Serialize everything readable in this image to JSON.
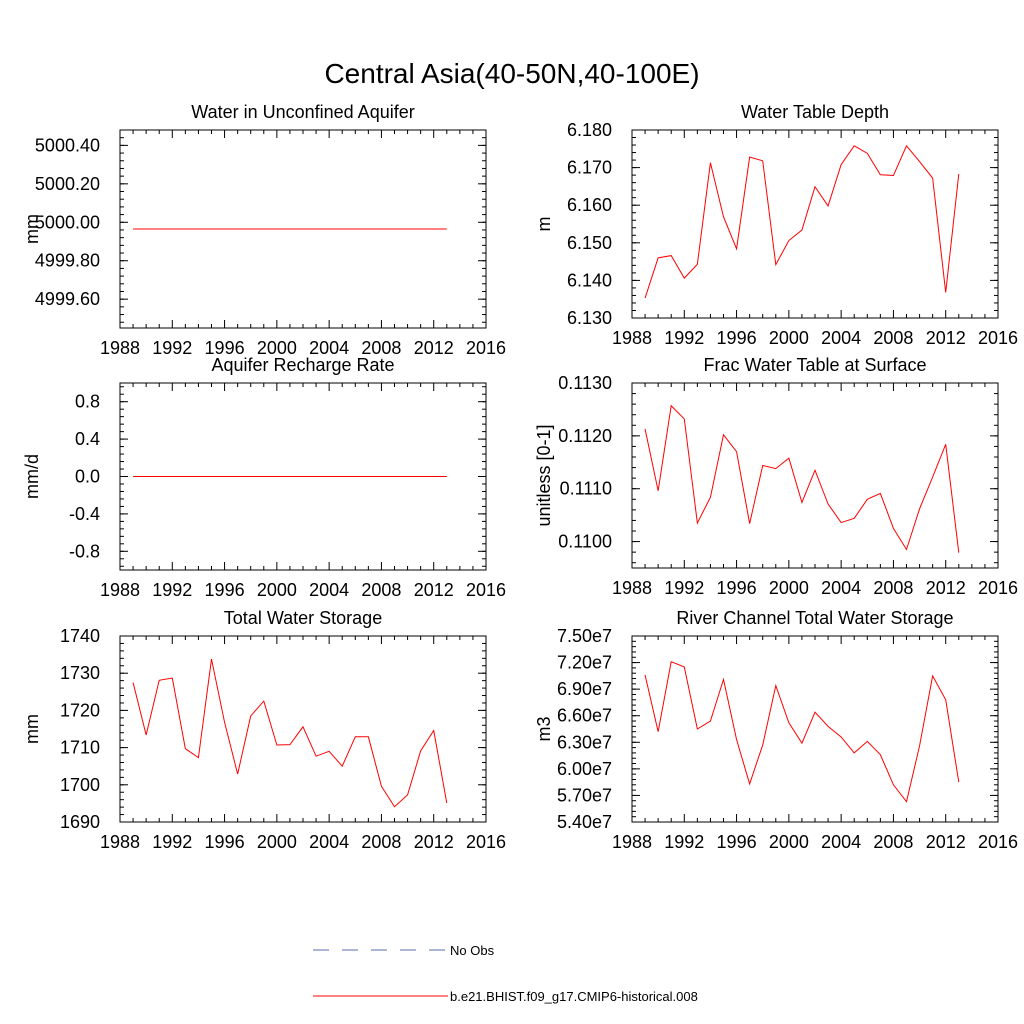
{
  "figure_title": "Central Asia(40-50N,40-100E)",
  "legend": {
    "entries": [
      {
        "label": "No Obs",
        "color": "#5a6fb0",
        "style": "dashed"
      },
      {
        "label": "b.e21.BHIST.f09_g17.CMIP6-historical.008",
        "color": "#ff0000",
        "style": "solid"
      }
    ]
  },
  "chart_data": [
    {
      "type": "line",
      "title": "Water in Unconfined Aquifer",
      "ylabel": "mm",
      "xlim": [
        1988,
        2016
      ],
      "ylim": [
        4999.45,
        5000.48
      ],
      "xticks": [
        1988,
        1992,
        1996,
        2000,
        2004,
        2008,
        2012,
        2016
      ],
      "yticks": [
        4999.6,
        4999.8,
        5000.0,
        5000.2,
        5000.4
      ],
      "ytick_labels": [
        "4999.60",
        "4999.80",
        "5000.00",
        "5000.20",
        "5000.40"
      ],
      "series": [
        {
          "color": "#ff0000",
          "x": [
            1989,
            1990,
            1991,
            1992,
            1993,
            1994,
            1995,
            1996,
            1997,
            1998,
            1999,
            2000,
            2001,
            2002,
            2003,
            2004,
            2005,
            2006,
            2007,
            2008,
            2009,
            2010,
            2011,
            2012,
            2013
          ],
          "y": [
            4999.965,
            4999.965,
            4999.965,
            4999.965,
            4999.965,
            4999.965,
            4999.965,
            4999.965,
            4999.965,
            4999.965,
            4999.965,
            4999.965,
            4999.965,
            4999.965,
            4999.965,
            4999.965,
            4999.965,
            4999.965,
            4999.965,
            4999.965,
            4999.965,
            4999.965,
            4999.965,
            4999.965,
            4999.965
          ]
        }
      ]
    },
    {
      "type": "line",
      "title": "Water Table Depth",
      "ylabel": "m",
      "xlim": [
        1988,
        2016
      ],
      "ylim": [
        6.13,
        6.18
      ],
      "xticks": [
        1988,
        1992,
        1996,
        2000,
        2004,
        2008,
        2012,
        2016
      ],
      "yticks": [
        6.13,
        6.14,
        6.15,
        6.16,
        6.17,
        6.18
      ],
      "ytick_labels": [
        "6.130",
        "6.140",
        "6.150",
        "6.160",
        "6.170",
        "6.180"
      ],
      "series": [
        {
          "color": "#ff0000",
          "x": [
            1989,
            1990,
            1991,
            1992,
            1993,
            1994,
            1995,
            1996,
            1997,
            1998,
            1999,
            2000,
            2001,
            2002,
            2003,
            2004,
            2005,
            2006,
            2007,
            2008,
            2009,
            2010,
            2011,
            2012,
            2013
          ],
          "y": [
            6.1353,
            6.146,
            6.1466,
            6.1406,
            6.1443,
            6.1713,
            6.1569,
            6.1484,
            6.1728,
            6.1718,
            6.1442,
            6.1506,
            6.1534,
            6.1649,
            6.1598,
            6.1708,
            6.1758,
            6.1738,
            6.1681,
            6.1679,
            6.1758,
            6.1716,
            6.1672,
            6.1368,
            6.1683
          ]
        }
      ]
    },
    {
      "type": "line",
      "title": "Aquifer Recharge Rate",
      "ylabel": "mm/d",
      "xlim": [
        1988,
        2016
      ],
      "ylim": [
        -1.0,
        1.0
      ],
      "xticks": [
        1988,
        1992,
        1996,
        2000,
        2004,
        2008,
        2012,
        2016
      ],
      "yticks": [
        -0.8,
        -0.4,
        0.0,
        0.4,
        0.8
      ],
      "ytick_labels": [
        "-0.8",
        "-0.4",
        "0.0",
        "0.4",
        "0.8"
      ],
      "series": [
        {
          "color": "#ff0000",
          "x": [
            1989,
            1990,
            1991,
            1992,
            1993,
            1994,
            1995,
            1996,
            1997,
            1998,
            1999,
            2000,
            2001,
            2002,
            2003,
            2004,
            2005,
            2006,
            2007,
            2008,
            2009,
            2010,
            2011,
            2012,
            2013
          ],
          "y": [
            0,
            0,
            0,
            0,
            0,
            0,
            0,
            0,
            0,
            0,
            0,
            0,
            0,
            0,
            0,
            0,
            0,
            0,
            0,
            0,
            0,
            0,
            0,
            0,
            0
          ]
        }
      ]
    },
    {
      "type": "line",
      "title": "Frac Water Table at Surface",
      "ylabel": "unitless [0-1]",
      "xlim": [
        1988,
        2016
      ],
      "ylim": [
        0.1095,
        0.113
      ],
      "xticks": [
        1988,
        1992,
        1996,
        2000,
        2004,
        2008,
        2012,
        2016
      ],
      "yticks": [
        0.11,
        0.111,
        0.112,
        0.113
      ],
      "ytick_labels": [
        "0.1100",
        "0.1110",
        "0.1120",
        "0.1130"
      ],
      "series": [
        {
          "color": "#ff0000",
          "x": [
            1989,
            1990,
            1991,
            1992,
            1993,
            1994,
            1995,
            1996,
            1997,
            1998,
            1999,
            2000,
            2001,
            2002,
            2003,
            2004,
            2005,
            2006,
            2007,
            2008,
            2009,
            2010,
            2011,
            2012,
            2013
          ],
          "y": [
            0.11213,
            0.11096,
            0.11257,
            0.11232,
            0.11035,
            0.11084,
            0.11202,
            0.1117,
            0.11034,
            0.11144,
            0.11138,
            0.11158,
            0.11074,
            0.11135,
            0.11071,
            0.11036,
            0.11044,
            0.1108,
            0.11091,
            0.11025,
            0.10985,
            0.11062,
            0.11122,
            0.11184,
            0.10979
          ]
        }
      ]
    },
    {
      "type": "line",
      "title": "Total Water Storage",
      "ylabel": "mm",
      "xlim": [
        1988,
        2016
      ],
      "ylim": [
        1690,
        1740
      ],
      "xticks": [
        1988,
        1992,
        1996,
        2000,
        2004,
        2008,
        2012,
        2016
      ],
      "yticks": [
        1690,
        1700,
        1710,
        1720,
        1730,
        1740
      ],
      "ytick_labels": [
        "1690",
        "1700",
        "1710",
        "1720",
        "1730",
        "1740"
      ],
      "series": [
        {
          "color": "#ff0000",
          "x": [
            1989,
            1990,
            1991,
            1992,
            1993,
            1994,
            1995,
            1996,
            1997,
            1998,
            1999,
            2000,
            2001,
            2002,
            2003,
            2004,
            2005,
            2006,
            2007,
            2008,
            2009,
            2010,
            2011,
            2012,
            2013
          ],
          "y": [
            1727.5,
            1713.4,
            1728.1,
            1728.7,
            1709.7,
            1707.3,
            1733.8,
            1716.8,
            1702.9,
            1718.5,
            1722.5,
            1710.7,
            1710.8,
            1715.6,
            1707.7,
            1709.0,
            1705.0,
            1712.9,
            1712.9,
            1699.6,
            1694.1,
            1697.3,
            1709.1,
            1714.6,
            1695.1
          ]
        }
      ]
    },
    {
      "type": "line",
      "title": "River Channel Total Water Storage",
      "ylabel": "m3",
      "xlim": [
        1988,
        2016
      ],
      "ylim": [
        54000000,
        75000000
      ],
      "xticks": [
        1988,
        1992,
        1996,
        2000,
        2004,
        2008,
        2012,
        2016
      ],
      "yticks": [
        54000000,
        57000000,
        60000000,
        63000000,
        66000000,
        69000000,
        72000000,
        75000000
      ],
      "ytick_labels": [
        "5.40e7",
        "5.70e7",
        "6.00e7",
        "6.30e7",
        "6.60e7",
        "6.90e7",
        "7.20e7",
        "7.50e7"
      ],
      "series": [
        {
          "color": "#ff0000",
          "x": [
            1989,
            1990,
            1991,
            1992,
            1993,
            1994,
            1995,
            1996,
            1997,
            1998,
            1999,
            2000,
            2001,
            2002,
            2003,
            2004,
            2005,
            2006,
            2007,
            2008,
            2009,
            2010,
            2011,
            2012,
            2013
          ],
          "y": [
            70600000,
            64200000,
            72100000,
            71500000,
            64500000,
            65400000,
            70100000,
            63300000,
            58300000,
            62700000,
            69400000,
            65200000,
            62900000,
            66400000,
            64800000,
            63600000,
            61800000,
            63100000,
            61600000,
            58200000,
            56300000,
            62600000,
            70500000,
            67800000,
            58500000
          ]
        }
      ]
    }
  ]
}
